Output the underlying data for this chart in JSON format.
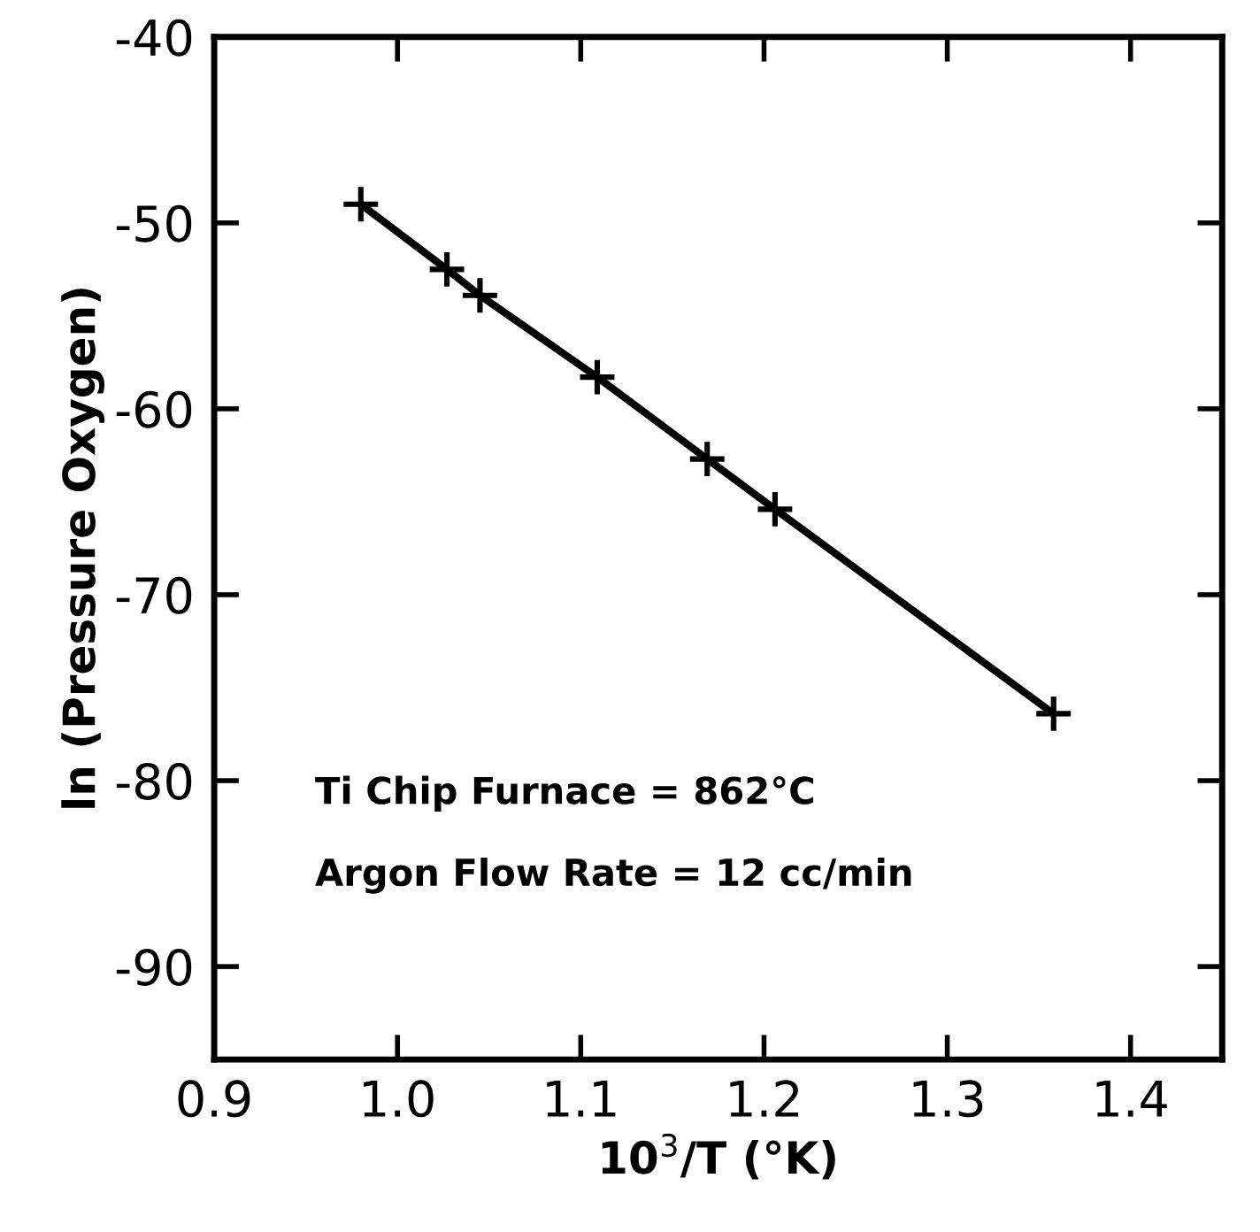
{
  "chart_data": {
    "type": "line",
    "xlabel": "10$^{3}$/T (°K)",
    "ylabel": "ln (Pressure Oxygen)",
    "x": [
      0.98,
      1.027,
      1.045,
      1.109,
      1.169,
      1.206,
      1.358
    ],
    "series": [
      {
        "color": "#000000",
        "values": [
          -49.0,
          -52.5,
          -53.9,
          -58.3,
          -62.7,
          -65.4,
          -76.4
        ]
      }
    ],
    "marker": "cross",
    "line_style": "solid",
    "grid": false,
    "legend": false,
    "xlim": [
      0.9,
      1.45
    ],
    "xticks": [
      0.9,
      {
        "value": 1,
        "label": "1.0"
      },
      1.1,
      1.2,
      1.3,
      1.4
    ],
    "ylim": [
      -95,
      -40
    ],
    "yticks": [
      -40,
      -50,
      -60,
      -70,
      -80,
      -90
    ],
    "annotations": [
      "Ti Chip Furnace = 862°C",
      "Argon Flow Rate = 12 cc/min"
    ]
  }
}
